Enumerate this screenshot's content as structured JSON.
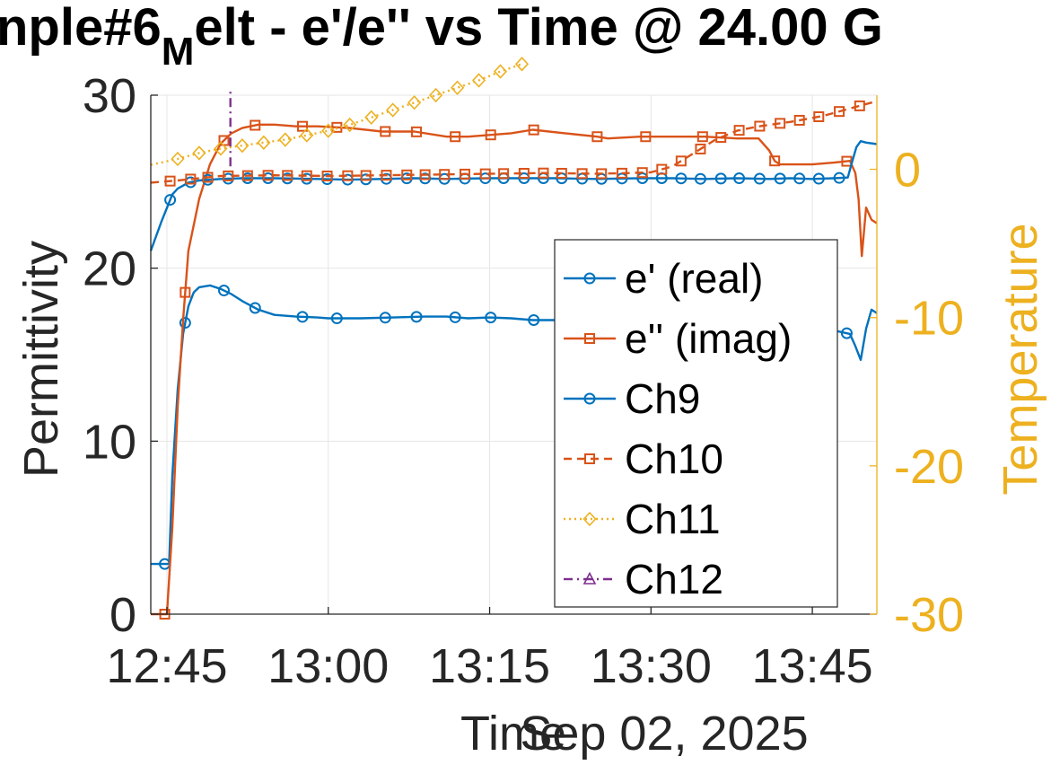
{
  "chart_data": {
    "type": "line",
    "title_pre": "nple#6",
    "title_sub": "M",
    "title_post": "elt - e'/e'' vs Time @ 24.00 G",
    "xlabel": "Time",
    "xlabel_secondary": "Sep 02, 2025",
    "ylabel_left": "Permittivity",
    "ylabel_right": "Temperature",
    "x_unit": "minutes since 12:45",
    "xlim": [
      -1.5,
      66
    ],
    "ylim_left": [
      0,
      30
    ],
    "ylim_right": [
      -30,
      5
    ],
    "xticks": [
      {
        "value": 0,
        "label": "12:45"
      },
      {
        "value": 15,
        "label": "13:00"
      },
      {
        "value": 30,
        "label": "13:15"
      },
      {
        "value": 45,
        "label": "13:30"
      },
      {
        "value": 60,
        "label": "13:45"
      }
    ],
    "yticks_left": [
      {
        "value": 0,
        "label": "0"
      },
      {
        "value": 10,
        "label": "10"
      },
      {
        "value": 20,
        "label": "20"
      },
      {
        "value": 30,
        "label": "30"
      }
    ],
    "yticks_right": [
      {
        "value": 0,
        "label": "0"
      },
      {
        "value": -10,
        "label": "-10"
      },
      {
        "value": -20,
        "label": "-20"
      },
      {
        "value": -30,
        "label": "-30"
      }
    ],
    "grid": true,
    "legend_position": "lower-right (inside)",
    "series": [
      {
        "name": "e' (real)",
        "axis": "left",
        "color": "#0072BD",
        "marker": "circle",
        "line": "solid",
        "x": [
          -1.5,
          0,
          0.2,
          0.5,
          1,
          1.5,
          2,
          2.5,
          3,
          4,
          5,
          6,
          7,
          8.5,
          10,
          12,
          14,
          15,
          17,
          18,
          21,
          24,
          26,
          28,
          30,
          32,
          34,
          37,
          38,
          41,
          44,
          46,
          48,
          50,
          53,
          56,
          58,
          60,
          62,
          63.5,
          64,
          64.5,
          65,
          65.5,
          66
        ],
        "y": [
          2.9,
          2.9,
          2.9,
          8,
          13,
          16.2,
          17.8,
          18.6,
          18.9,
          19.0,
          18.8,
          18.5,
          18.1,
          17.6,
          17.3,
          17.2,
          17.15,
          17.1,
          17.1,
          17.1,
          17.15,
          17.2,
          17.2,
          17.1,
          17.15,
          17.1,
          17.0,
          17.0,
          16.9,
          16.9,
          16.8,
          16.8,
          16.7,
          16.6,
          16.6,
          16.5,
          16.5,
          16.45,
          16.4,
          16.2,
          15.5,
          14.7,
          16.5,
          17.6,
          17.4
        ],
        "marker_x": [
          -0.2,
          1.7,
          5.3,
          8.2,
          12.6,
          15.8,
          20.3,
          23.2,
          26.8,
          30.1,
          34.1,
          40,
          44.5,
          49.8,
          56.5,
          63.2
        ]
      },
      {
        "name": "e'' (imag)",
        "axis": "left",
        "color": "#D95319",
        "marker": "square",
        "line": "solid",
        "x": [
          -1.5,
          0,
          0.5,
          1,
          1.5,
          2,
          3,
          4,
          5,
          6,
          7,
          8.5,
          10,
          12,
          14,
          17,
          20,
          23,
          26,
          28,
          30,
          32,
          34,
          37,
          40,
          41,
          44,
          47,
          50,
          53,
          55,
          56,
          56.5,
          57,
          60,
          62,
          63.5,
          64,
          64.3,
          64.6,
          65,
          65.5,
          66
        ],
        "y": [
          0,
          0,
          5,
          12,
          17,
          21,
          24,
          26,
          27.2,
          27.8,
          28.1,
          28.3,
          28.3,
          28.2,
          28.2,
          28.1,
          27.9,
          27.9,
          27.6,
          27.6,
          27.7,
          27.8,
          28.0,
          27.8,
          27.6,
          27.5,
          27.6,
          27.6,
          27.6,
          27.5,
          27.5,
          26.8,
          26.2,
          26.0,
          26.0,
          26.1,
          26.2,
          25.5,
          24.0,
          20.7,
          23.5,
          22.8,
          22.6
        ],
        "marker_x": [
          -0.2,
          1.7,
          5.3,
          8.2,
          12.6,
          15.8,
          20.3,
          23.2,
          26.8,
          30.1,
          34.1,
          40,
          44.5,
          49.8,
          56.5,
          63.2
        ]
      },
      {
        "name": "Ch9",
        "axis": "right",
        "color": "#0072BD",
        "marker": "circle",
        "line": "solid",
        "x": [
          -1.5,
          -0.5,
          0,
          0.5,
          1,
          2,
          3,
          5,
          7,
          10,
          14,
          17,
          20,
          23,
          26,
          30,
          33,
          36,
          40,
          44,
          47,
          50,
          53,
          56,
          58,
          60,
          62,
          63.3,
          63.7,
          64.1,
          64.5,
          65,
          66
        ],
        "y": [
          -5.5,
          -3.5,
          -2.6,
          -1.7,
          -1.3,
          -0.9,
          -0.75,
          -0.65,
          -0.6,
          -0.6,
          -0.65,
          -0.7,
          -0.65,
          -0.6,
          -0.65,
          -0.6,
          -0.6,
          -0.6,
          -0.65,
          -0.6,
          -0.6,
          -0.65,
          -0.6,
          -0.65,
          -0.6,
          -0.65,
          -0.6,
          -0.55,
          0.5,
          1.5,
          1.9,
          1.8,
          1.7
        ],
        "marker_x": [
          0.3,
          2.2,
          3.8,
          5.7,
          7.5,
          9.4,
          11.2,
          13,
          14.9,
          16.8,
          18.5,
          20.4,
          22.3,
          24,
          25.8,
          27.7,
          29.6,
          31.3,
          33.2,
          35,
          36.7,
          38.6,
          40.4,
          42.3,
          44.2,
          46,
          47.8,
          49.6,
          51.5,
          53.2,
          55.1,
          57,
          58.8,
          60.6,
          62.5
        ]
      },
      {
        "name": "Ch10",
        "axis": "right",
        "color": "#D95319",
        "marker": "square",
        "line": "dashed",
        "x": [
          -1.5,
          1,
          3,
          5,
          10,
          15,
          20,
          25,
          30,
          35,
          40,
          43,
          45,
          47,
          49,
          51,
          53,
          55,
          58,
          61,
          64,
          66
        ],
        "y": [
          -0.9,
          -0.75,
          -0.6,
          -0.45,
          -0.4,
          -0.45,
          -0.4,
          -0.35,
          -0.3,
          -0.25,
          -0.3,
          -0.25,
          -0.2,
          0.2,
          1.1,
          2.0,
          2.6,
          2.9,
          3.2,
          3.6,
          4.2,
          4.6
        ],
        "marker_x": [
          0.3,
          2.2,
          3.8,
          5.7,
          7.5,
          9.4,
          11.2,
          13,
          14.9,
          16.8,
          18.5,
          20.4,
          22.3,
          24,
          25.8,
          27.7,
          29.6,
          31.3,
          33.2,
          35,
          36.7,
          38.6,
          40.4,
          42.3,
          44.2,
          46,
          47.8,
          49.6,
          51.5,
          53.2,
          55.1,
          57,
          58.8,
          60.6,
          62.5,
          64.4
        ]
      },
      {
        "name": "Ch11",
        "axis": "right",
        "color": "#EDB120",
        "marker": "diamond",
        "line": "dotted",
        "x": [
          -1.5,
          1,
          3,
          5,
          7,
          9,
          11,
          13,
          15,
          17,
          19,
          21,
          23,
          25,
          27,
          29,
          31,
          33
        ],
        "y": [
          0.3,
          0.7,
          1.1,
          1.4,
          1.6,
          1.8,
          2.0,
          2.3,
          2.6,
          3.0,
          3.5,
          4.0,
          4.5,
          5.0,
          5.5,
          6.0,
          6.6,
          7.1
        ],
        "marker_x": [
          1,
          3,
          5,
          7,
          9,
          11,
          13,
          15,
          17,
          19,
          21,
          23,
          25,
          27,
          29,
          31,
          33
        ]
      },
      {
        "name": "Ch12",
        "axis": "right",
        "color": "#7E2F8E",
        "marker": "triangle",
        "line": "dash-dot",
        "x": [
          5.9,
          5.9
        ],
        "y": [
          0.2,
          5.5
        ],
        "marker_x": []
      }
    ]
  }
}
